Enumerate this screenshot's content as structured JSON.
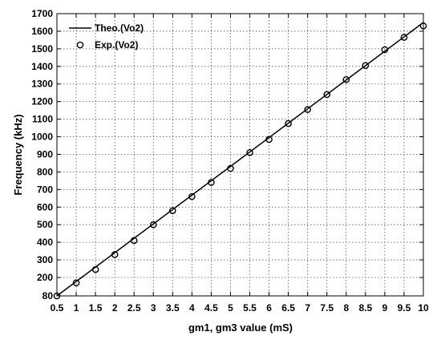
{
  "chart_data": {
    "type": "line",
    "xlabel": "gm1, gm3 value (mS)",
    "ylabel": "Frequency (kHz)",
    "xlim": [
      0.5,
      10
    ],
    "ylim": [
      80,
      1700
    ],
    "xticks": [
      "0.5",
      "1",
      "1.5",
      "2",
      "2.5",
      "3",
      "3.5",
      "4",
      "4.5",
      "5",
      "5.5",
      "6",
      "6.5",
      "7",
      "7.5",
      "8",
      "8.5",
      "9",
      "9.5",
      "10"
    ],
    "yticks": [
      "80",
      "200",
      "300",
      "400",
      "500",
      "600",
      "700",
      "800",
      "900",
      "1000",
      "1100",
      "1200",
      "1300",
      "1400",
      "1500",
      "1600",
      "1700"
    ],
    "grid": true,
    "legend_position": "top-left",
    "series": [
      {
        "name": "Theo.(Vo2)",
        "style": "line",
        "color": "#000000",
        "x": [
          0.5,
          10
        ],
        "y": [
          80,
          1650
        ]
      },
      {
        "name": "Exp.(Vo2)",
        "style": "markers",
        "marker": "circle",
        "color": "#000000",
        "x": [
          0.5,
          1,
          1.5,
          2,
          2.5,
          3,
          3.5,
          4,
          4.5,
          5,
          5.5,
          6,
          6.5,
          7,
          7.5,
          8,
          8.5,
          9,
          9.5,
          10
        ],
        "y": [
          80,
          165,
          245,
          330,
          410,
          500,
          580,
          660,
          740,
          820,
          910,
          985,
          1075,
          1155,
          1240,
          1325,
          1405,
          1495,
          1565,
          1630
        ]
      }
    ]
  }
}
